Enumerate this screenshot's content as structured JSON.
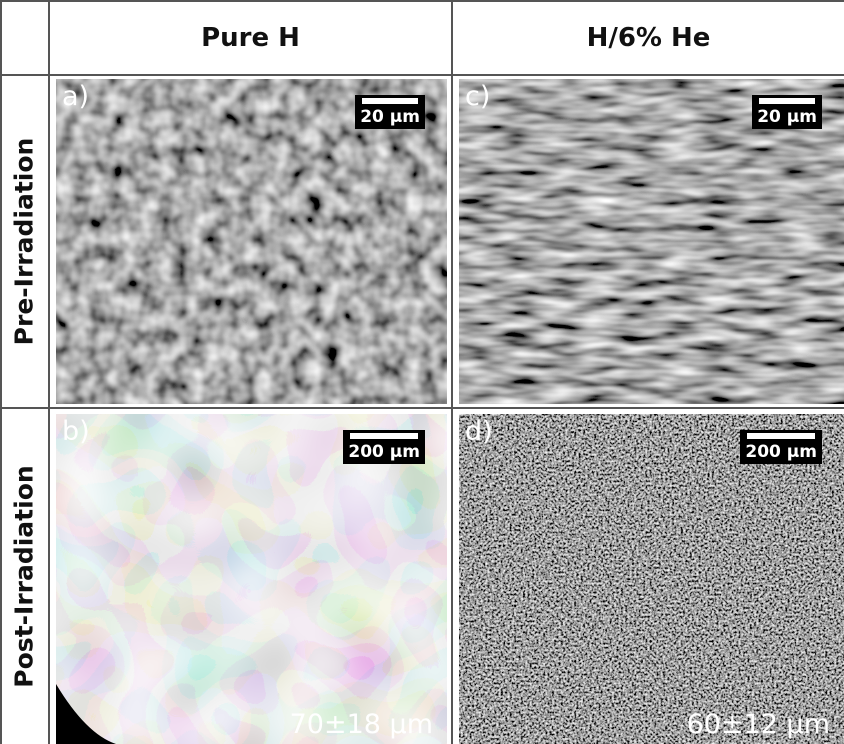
{
  "table": {
    "columns": [
      "Pure H",
      "H/6% He"
    ],
    "rows": [
      {
        "label": "Pre-Irradiation",
        "panels": [
          {
            "label": "a)",
            "scale_bar": "20 µm"
          },
          {
            "label": "c)",
            "scale_bar": "20 µm"
          }
        ]
      },
      {
        "label": "Post-Irradiation",
        "panels": [
          {
            "label": "b)",
            "scale_bar": "200 µm",
            "grain_size": "70±18 µm"
          },
          {
            "label": "d)",
            "scale_bar": "200 µm",
            "grain_size": "60±12 µm"
          }
        ]
      }
    ]
  }
}
